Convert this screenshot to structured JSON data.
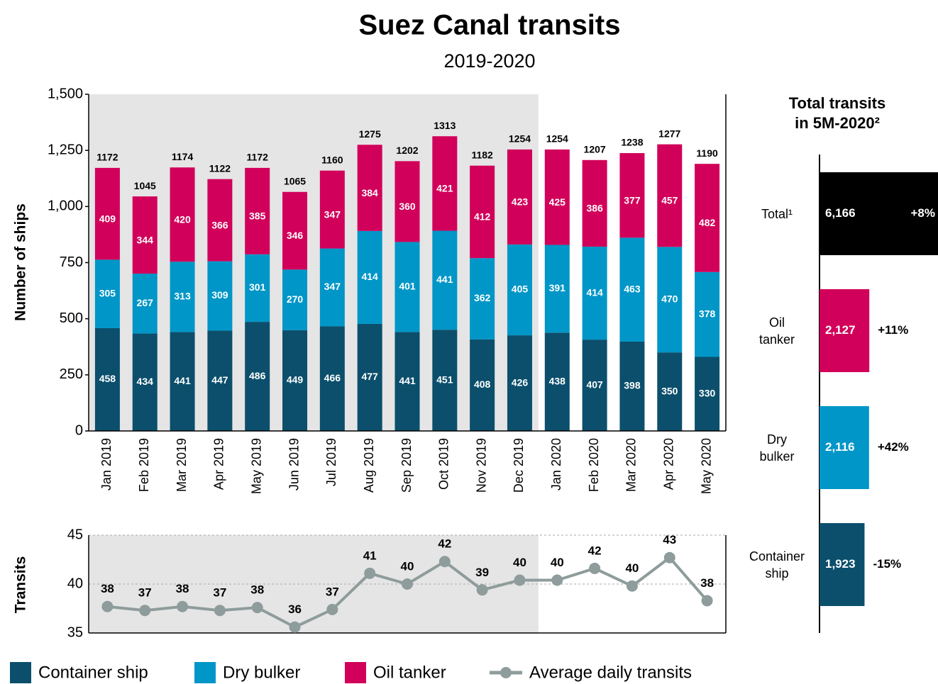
{
  "chart_data": [
    {
      "type": "stacked_bar",
      "title": "Suez Canal transits",
      "subtitle": "2019-2020",
      "ylabel": "Number of ships",
      "categories": [
        "Jan 2019",
        "Feb 2019",
        "Mar 2019",
        "Apr 2019",
        "May 2019",
        "Jun 2019",
        "Jul 2019",
        "Aug 2019",
        "Sep 2019",
        "Oct 2019",
        "Nov 2019",
        "Dec 2019",
        "Jan 2020",
        "Feb 2020",
        "Mar 2020",
        "Apr 2020",
        "May 2020"
      ],
      "series": [
        {
          "name": "Container ship",
          "color": "#0b4f6c",
          "values": [
            458,
            434,
            441,
            447,
            486,
            449,
            466,
            477,
            441,
            451,
            408,
            426,
            438,
            407,
            398,
            350,
            330
          ]
        },
        {
          "name": "Dry bulker",
          "color": "#0096c7",
          "values": [
            305,
            267,
            313,
            309,
            301,
            270,
            347,
            414,
            401,
            441,
            362,
            405,
            391,
            414,
            463,
            470,
            378
          ]
        },
        {
          "name": "Oil tanker",
          "color": "#d1005a",
          "values": [
            409,
            344,
            420,
            366,
            385,
            346,
            347,
            384,
            360,
            421,
            412,
            423,
            425,
            386,
            377,
            457,
            482
          ]
        }
      ],
      "totals": [
        1172,
        1045,
        1174,
        1122,
        1172,
        1065,
        1160,
        1275,
        1202,
        1313,
        1182,
        1254,
        1254,
        1207,
        1238,
        1277,
        1190
      ],
      "ylim": [
        0,
        1500
      ],
      "yticks": [
        0,
        250,
        500,
        750,
        {
          "value": 1000,
          "label": "1,000"
        },
        {
          "value": 1250,
          "label": "1,250"
        },
        {
          "value": 1500,
          "label": "1,500"
        }
      ]
    },
    {
      "type": "line",
      "ylabel": "Transits",
      "series": [
        {
          "name": "Average daily transits",
          "color": "#8e9c9b",
          "values": [
            37.7,
            37.3,
            37.7,
            37.3,
            37.6,
            35.6,
            37.4,
            41.1,
            40.0,
            42.3,
            39.4,
            40.4,
            40.4,
            41.6,
            39.8,
            42.7,
            38.3
          ],
          "value_labels": [
            "38",
            "37",
            "38",
            "37",
            "38",
            "36",
            "37",
            "41",
            "40",
            "42",
            "39",
            "40",
            "40",
            "42",
            "40",
            "43",
            "38"
          ]
        }
      ],
      "ylim": [
        35,
        45
      ],
      "yticks": [
        35,
        40,
        45
      ],
      "grid": true
    },
    {
      "type": "hbar",
      "title_lines": [
        "Total transits",
        "in 5M-2020²"
      ],
      "categories": [
        "Total¹",
        "Oil\ntanker",
        "Dry\nbulker",
        "Container\nship"
      ],
      "values": [
        6166,
        2127,
        2116,
        1923
      ],
      "value_labels": [
        "6,166",
        "2,127",
        "2,116",
        "1,923"
      ],
      "changes": [
        "+8%",
        "+11%",
        "+42%",
        "-15%"
      ],
      "colors": [
        "#000000",
        "#d1005a",
        "#0096c7",
        "#0b4f6c"
      ]
    }
  ]
}
